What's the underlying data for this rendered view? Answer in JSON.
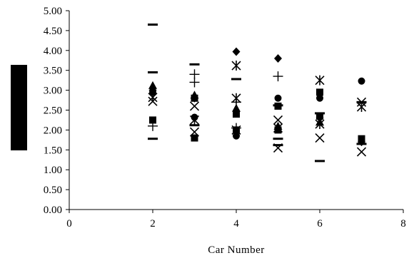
{
  "chart_data": {
    "type": "scatter",
    "title": "",
    "xlabel": "Car Number",
    "ylabel": "",
    "xlim": [
      0,
      8
    ],
    "ylim": [
      0,
      5
    ],
    "x_ticks": [
      "0",
      "2",
      "4",
      "6",
      "8"
    ],
    "y_ticks": [
      "0.00",
      "0.50",
      "1.00",
      "1.50",
      "2.00",
      "2.50",
      "3.00",
      "3.50",
      "4.00",
      "4.50",
      "5.00"
    ],
    "grid": false,
    "legend": "none",
    "series": [
      {
        "marker": "diamond",
        "points": [
          [
            2,
            3.0
          ],
          [
            3,
            2.8
          ],
          [
            4,
            3.97
          ],
          [
            5,
            3.8
          ],
          [
            6,
            2.3
          ],
          [
            7,
            1.7
          ]
        ]
      },
      {
        "marker": "square",
        "points": [
          [
            2,
            2.25
          ],
          [
            3,
            2.8
          ],
          [
            3,
            1.8
          ],
          [
            4,
            2.4
          ],
          [
            4,
            2.0
          ],
          [
            5,
            2.6
          ],
          [
            5,
            2.0
          ],
          [
            6,
            2.95
          ],
          [
            6,
            2.35
          ],
          [
            7,
            1.78
          ]
        ]
      },
      {
        "marker": "triangle",
        "points": [
          [
            2,
            3.12
          ],
          [
            3,
            2.88
          ],
          [
            4,
            2.55
          ],
          [
            5,
            2.1
          ],
          [
            6,
            2.2
          ],
          [
            7,
            1.72
          ]
        ]
      },
      {
        "marker": "cross",
        "points": [
          [
            2,
            2.72
          ],
          [
            3,
            2.6
          ],
          [
            3,
            1.95
          ],
          [
            4,
            2.0
          ],
          [
            5,
            2.25
          ],
          [
            5,
            1.55
          ],
          [
            6,
            1.8
          ],
          [
            7,
            2.7
          ],
          [
            7,
            1.45
          ]
        ]
      },
      {
        "marker": "asterisk",
        "points": [
          [
            2,
            2.82
          ],
          [
            3,
            2.25
          ],
          [
            4,
            3.62
          ],
          [
            4,
            2.8
          ],
          [
            5,
            2.05
          ],
          [
            6,
            3.25
          ],
          [
            6,
            2.15
          ],
          [
            7,
            2.58
          ]
        ]
      },
      {
        "marker": "circle",
        "points": [
          [
            2,
            2.95
          ],
          [
            3,
            2.32
          ],
          [
            4,
            1.85
          ],
          [
            5,
            2.8
          ],
          [
            6,
            2.8
          ],
          [
            7,
            3.23
          ]
        ]
      },
      {
        "marker": "plus",
        "points": [
          [
            2,
            2.1
          ],
          [
            3,
            3.4
          ],
          [
            3,
            3.2
          ],
          [
            4,
            2.7
          ],
          [
            4,
            2.05
          ],
          [
            5,
            3.35
          ]
        ]
      },
      {
        "marker": "dash",
        "points": [
          [
            2,
            4.65
          ],
          [
            2,
            3.45
          ],
          [
            2,
            1.78
          ],
          [
            3,
            3.65
          ],
          [
            3,
            2.12
          ],
          [
            4,
            3.28
          ],
          [
            5,
            2.62
          ],
          [
            5,
            1.78
          ],
          [
            5,
            1.62
          ],
          [
            6,
            2.42
          ],
          [
            6,
            1.22
          ],
          [
            7,
            2.7
          ],
          [
            7,
            1.65
          ]
        ]
      }
    ]
  }
}
